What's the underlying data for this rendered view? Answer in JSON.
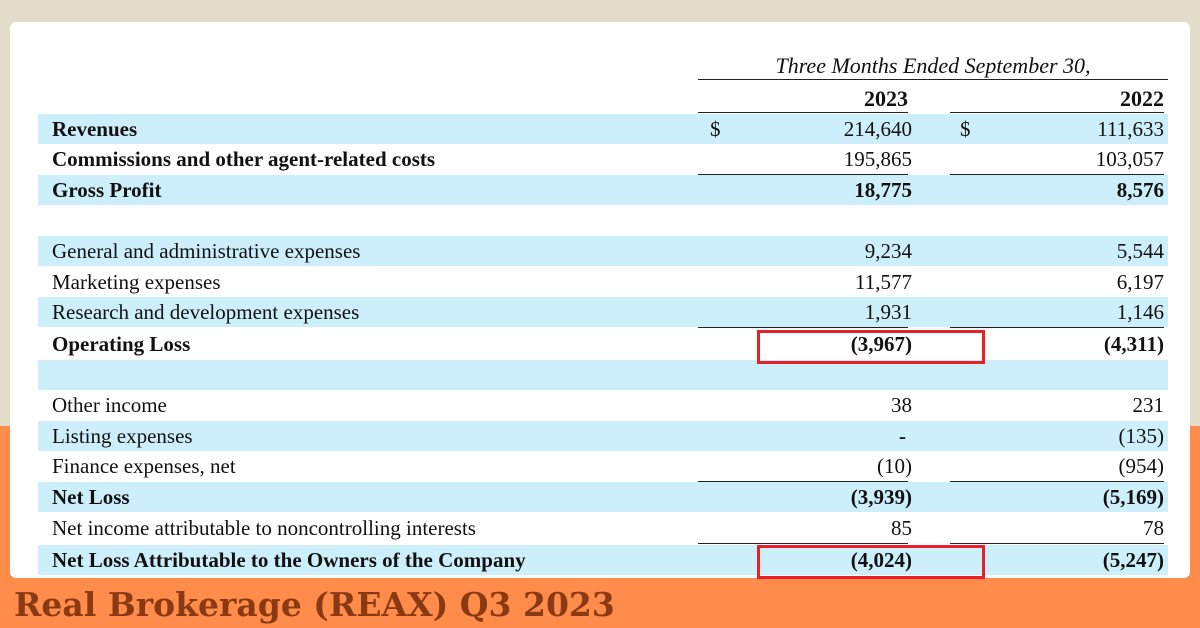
{
  "header": {
    "period": "Three Months Ended September 30,",
    "year_current": "2023",
    "year_prior": "2022"
  },
  "rows": [
    {
      "label": "Revenues",
      "cur1": "$",
      "v1": "214,640",
      "cur2": "$",
      "v2": "111,633"
    },
    {
      "label": "Commissions and other agent-related costs",
      "v1": "195,865",
      "v2": "103,057"
    },
    {
      "label": "Gross Profit",
      "v1": "18,775",
      "v2": "8,576"
    },
    {
      "label": "",
      "v1": "",
      "v2": ""
    },
    {
      "label": "General and administrative expenses",
      "v1": "9,234",
      "v2": "5,544"
    },
    {
      "label": "Marketing expenses",
      "v1": "11,577",
      "v2": "6,197"
    },
    {
      "label": "Research and development expenses",
      "v1": "1,931",
      "v2": "1,146"
    },
    {
      "label": "Operating Loss",
      "v1": "(3,967)",
      "v2": "(4,311)"
    },
    {
      "label": "",
      "v1": "",
      "v2": ""
    },
    {
      "label": "Other income",
      "v1": "38",
      "v2": "231"
    },
    {
      "label": "Listing expenses",
      "v1": "-",
      "v2": "(135)"
    },
    {
      "label": "Finance expenses, net",
      "v1": "(10)",
      "v2": "(954)"
    },
    {
      "label": "Net Loss",
      "v1": "(3,939)",
      "v2": "(5,169)"
    },
    {
      "label": "Net income attributable to noncontrolling interests",
      "v1": "85",
      "v2": "78"
    },
    {
      "label": "Net Loss Attributable to the Owners of the Company",
      "v1": "(4,024)",
      "v2": "(5,247)"
    }
  ],
  "footer": {
    "title": "Real Brokerage (REAX) Q3 2023"
  },
  "colors": {
    "background": "#e2dcc9",
    "orange_band": "#ff8c4a",
    "row_shade": "#cdeefb",
    "highlight": "#e8202a",
    "footer_text": "#8a3a12"
  }
}
